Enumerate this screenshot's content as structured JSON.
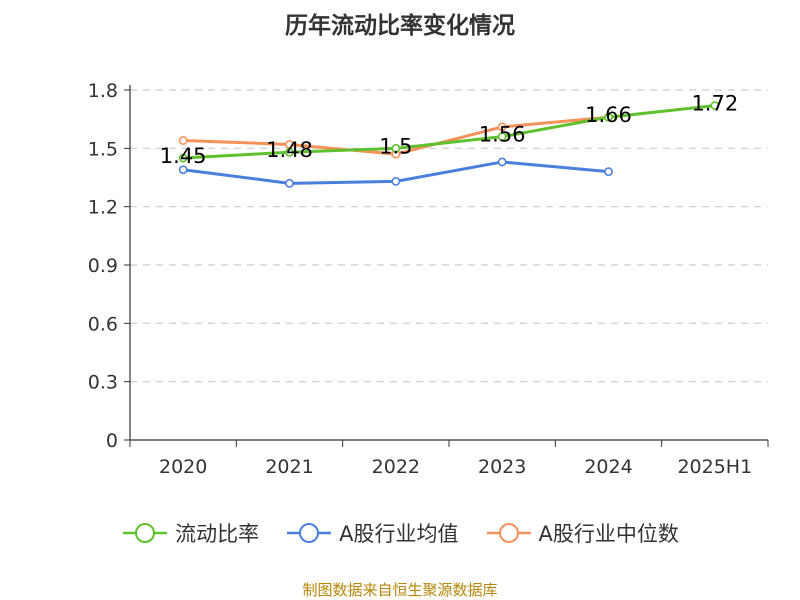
{
  "title": "历年流动比率变化情况",
  "source": "制图数据来自恒生聚源数据库",
  "chart_data": {
    "type": "line",
    "title": "历年流动比率变化情况",
    "categories": [
      "2020",
      "2021",
      "2022",
      "2023",
      "2024",
      "2025H1"
    ],
    "ylim": [
      0,
      1.8
    ],
    "yticks": [
      "0",
      "0.3",
      "0.6",
      "0.9",
      "1.2",
      "1.5",
      "1.8"
    ],
    "grid": true,
    "legend_position": "bottom",
    "series": [
      {
        "name": "流动比率",
        "color": "#5fc12d",
        "values": [
          1.45,
          1.48,
          1.5,
          1.56,
          1.66,
          1.72
        ],
        "labels": [
          "1.45",
          "1.48",
          "1.5",
          "1.56",
          "1.66",
          "1.72"
        ]
      },
      {
        "name": "A股行业均值",
        "color": "#4a7fdd",
        "values": [
          1.39,
          1.32,
          1.33,
          1.43,
          1.38,
          null
        ]
      },
      {
        "name": "A股行业中位数",
        "color": "#f5915a",
        "values": [
          1.54,
          1.52,
          1.47,
          1.61,
          1.66,
          null
        ]
      }
    ]
  }
}
